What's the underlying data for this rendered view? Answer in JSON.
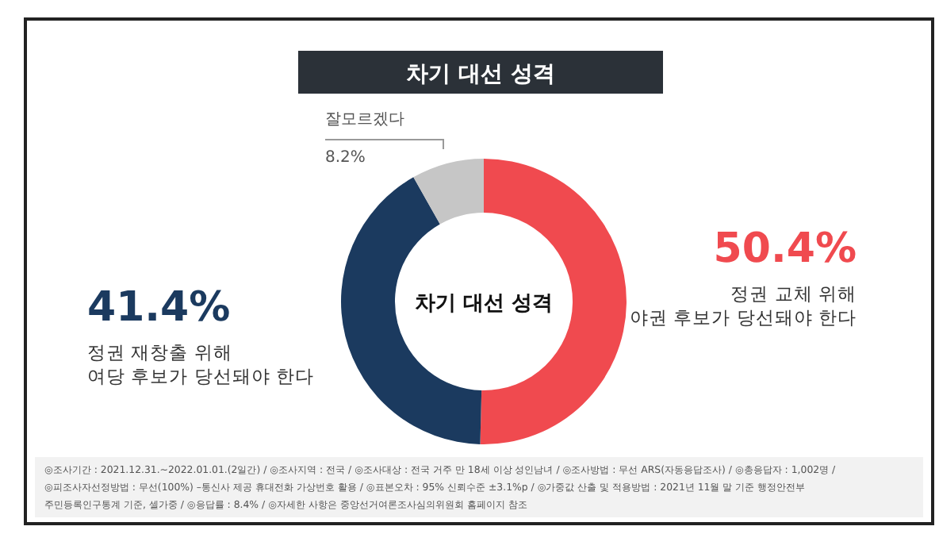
{
  "chart_data": {
    "type": "donut",
    "title": "차기 대선 성격",
    "categories": [
      "정권 교체 위해\n야권 후보가 당선돼야 한다",
      "정권 재창출 위해\n여당 후보가 당선돼야 한다",
      "잘모르겠다"
    ],
    "values": [
      50.4,
      41.4,
      8.2
    ],
    "colors": [
      "#f04a4f",
      "#1b3a5f",
      "#c6c6c6"
    ],
    "value_labels": [
      "50.4%",
      "41.4%",
      "8.2%"
    ],
    "annotations": [
      "차기 대선 성격",
      "◎조사기간 : 2021.12.31.~2022.01.01.(2일간) / ◎조사지역 : 전국 / ◎조사대상 : 전국 거주 만 18세 이상 성인남녀 / ◎조사방법 : 무선 ARS(자동응답조사) / ◎총응답자 : 1,002명 /",
      "◎피조사자선정방법 : 무선(100%) –통신사 제공 휴대전화 가상번호 활용 / ◎표본오차 : 95% 신뢰수준 ±3.1%p / ◎가중값 산출 및 적용방법 : 2021년 11월 말 기준 행정안전부",
      "주민등록인구통계 기준, 셀가중 / ◎응답률 : 8.4% / ◎자세한 사항은 중앙선거여론조사심의위원회 홈페이지 참조"
    ]
  }
}
